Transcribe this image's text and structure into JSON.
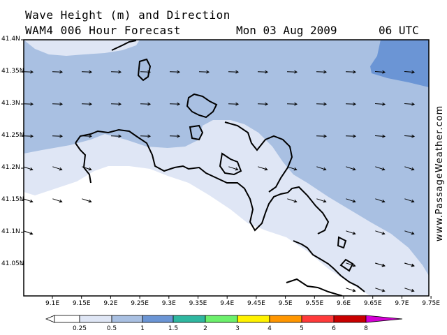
{
  "header": {
    "title": "Wave Height (m) and Direction",
    "subtitle": "WAM4 006 Hour Forecast",
    "date": "Mon 03 Aug 2009",
    "time": "06 UTC"
  },
  "credit": "www.PassageWeather.com",
  "axes": {
    "lat_labels": [
      "41.4N",
      "41.35N",
      "41.3N",
      "41.25N",
      "41.2N",
      "41.15N",
      "41.1N",
      "41.05N"
    ],
    "lon_labels": [
      "9.1E",
      "9.15E",
      "9.2E",
      "9.25E",
      "9.3E",
      "9.35E",
      "9.4E",
      "9.45E",
      "9.5E",
      "9.55E",
      "9.6E",
      "9.65E",
      "9.7E",
      "9.75E"
    ]
  },
  "legend": {
    "labels": [
      "0.25",
      "0.5",
      "1",
      "1.5",
      "2",
      "3",
      "4",
      "5",
      "6",
      "8"
    ],
    "colors": [
      "#ffffff",
      "#dfe6f5",
      "#a9c0e2",
      "#6b95d5",
      "#2fb7a0",
      "#6cf06c",
      "#fff200",
      "#ff9600",
      "#ff3a3a",
      "#c80000",
      "#d400d4"
    ]
  },
  "map": {
    "colors": {
      "calm": "#ffffff",
      "low": "#dfe6f5",
      "mid": "#a9c0e2",
      "high": "#6b95d5",
      "land": "#000000"
    },
    "wave_direction": "east-southeast"
  }
}
